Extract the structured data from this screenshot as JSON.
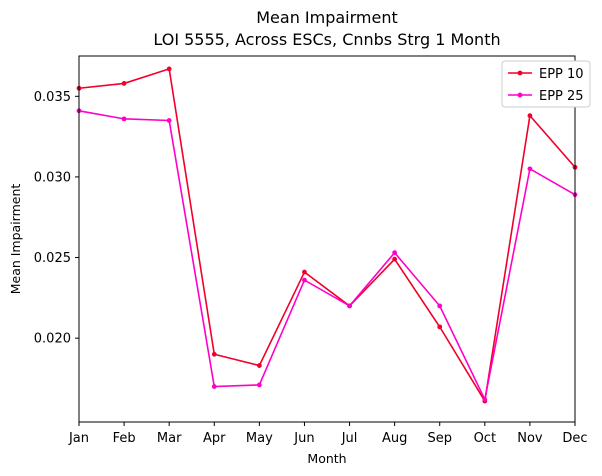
{
  "chart_data": {
    "type": "line",
    "title": "Mean Impairment",
    "subtitle": "LOI 5555, Across ESCs, Cnnbs Strg 1 Month",
    "xlabel": "Month",
    "ylabel": "Mean Impairment",
    "categories": [
      "Jan",
      "Feb",
      "Mar",
      "Apr",
      "May",
      "Jun",
      "Jul",
      "Aug",
      "Sep",
      "Oct",
      "Nov",
      "Dec"
    ],
    "ylim": [
      0.0148,
      0.0375
    ],
    "yticks": [
      "0.020",
      "0.025",
      "0.030",
      "0.035"
    ],
    "grid": false,
    "legend_position": "top-right",
    "series": [
      {
        "name": "EPP 10",
        "color": "#f0002a",
        "values": [
          0.0355,
          0.0358,
          0.0367,
          0.019,
          0.0183,
          0.0241,
          0.022,
          0.0249,
          0.0207,
          0.0161,
          0.0338,
          0.0306
        ]
      },
      {
        "name": "EPP 25",
        "color": "#ff00c8",
        "values": [
          0.0341,
          0.0336,
          0.0335,
          0.017,
          0.0171,
          0.0236,
          0.022,
          0.0253,
          0.022,
          0.0162,
          0.0305,
          0.0289
        ]
      }
    ]
  }
}
